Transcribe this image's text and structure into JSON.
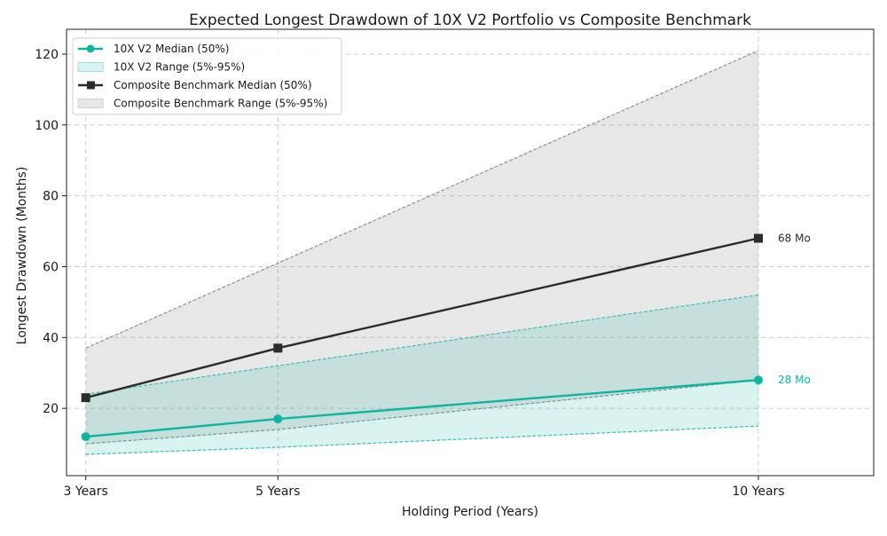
{
  "chart_data": {
    "type": "line",
    "title": "Expected Longest Drawdown of 10X V2 Portfolio vs Composite Benchmark",
    "xlabel": "Holding Period (Years)",
    "ylabel": "Longest Drawdown (Months)",
    "x": [
      3,
      5,
      10
    ],
    "x_tick_labels": [
      "3 Years",
      "5 Years",
      "10 Years"
    ],
    "xlim": [
      2.8,
      11.2
    ],
    "ylim": [
      1,
      127
    ],
    "y_ticks": [
      20,
      40,
      60,
      80,
      100,
      120
    ],
    "grid": true,
    "legend_position": "top-left",
    "series": [
      {
        "name": "10X V2 Median (50%)",
        "kind": "line",
        "marker": "circle",
        "color": "#10b5a0",
        "values": [
          12,
          17,
          28
        ]
      },
      {
        "name": "10X V2 Range (5%-95%)",
        "kind": "band",
        "color": "#10b5a0",
        "lower": [
          7,
          9,
          15
        ],
        "upper": [
          24,
          32,
          52
        ]
      },
      {
        "name": "Composite Benchmark Median (50%)",
        "kind": "line",
        "marker": "square",
        "color": "#2b2b2b",
        "values": [
          23,
          37,
          68
        ]
      },
      {
        "name": "Composite Benchmark Range (5%-95%)",
        "kind": "band",
        "color": "#8c8c8c",
        "lower": [
          10,
          14,
          28
        ],
        "upper": [
          37,
          61,
          121
        ]
      }
    ],
    "annotations": [
      {
        "text": "68 Mo",
        "x": 10,
        "y": 68,
        "color": "#2b2b2b"
      },
      {
        "text": "28 Mo",
        "x": 10,
        "y": 28,
        "color": "#10b5a0"
      }
    ]
  }
}
